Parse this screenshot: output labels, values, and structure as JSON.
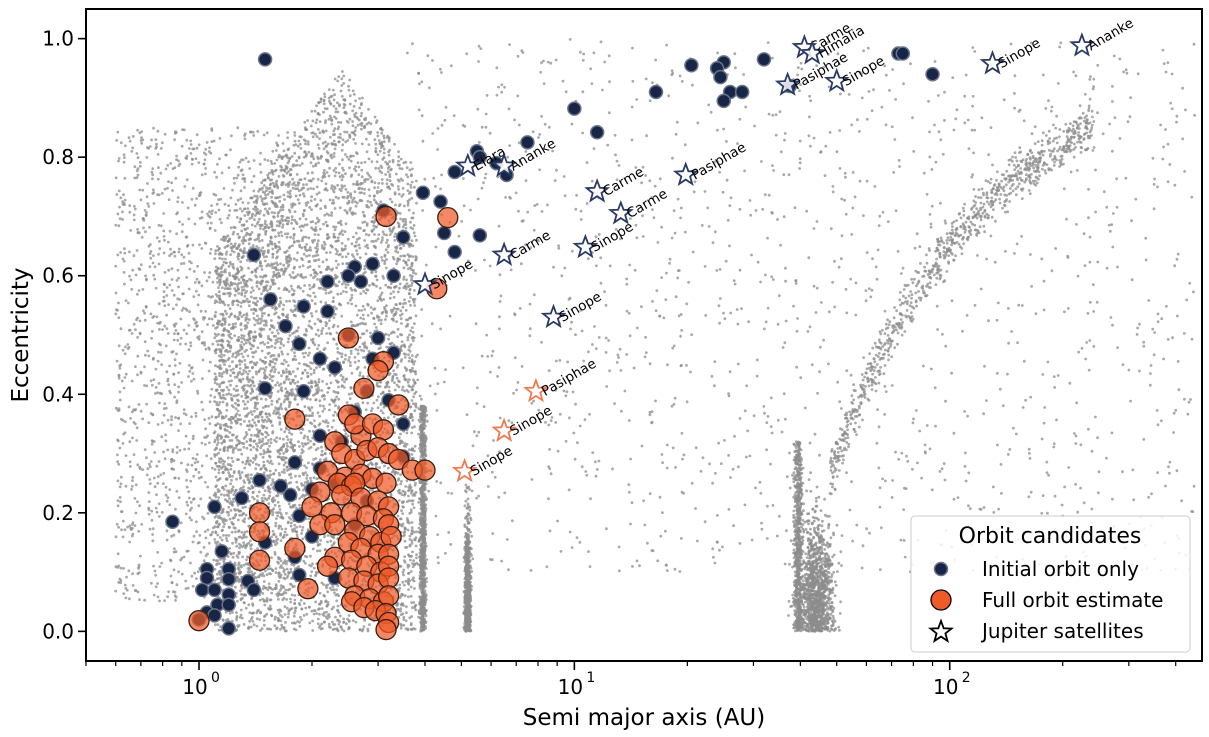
{
  "chart_data": {
    "type": "scatter",
    "xlabel": "Semi major axis (AU)",
    "ylabel": "Eccentricity",
    "xscale": "log",
    "xlim": [
      0.5,
      470
    ],
    "ylim": [
      -0.05,
      1.05
    ],
    "x_ticks": [
      {
        "value": 1,
        "base": "10",
        "exp": "0"
      },
      {
        "value": 10,
        "base": "10",
        "exp": "1"
      },
      {
        "value": 100,
        "base": "10",
        "exp": "2"
      }
    ],
    "y_ticks": [
      {
        "value": 0.0,
        "label": "0.0"
      },
      {
        "value": 0.2,
        "label": "0.2"
      },
      {
        "value": 0.4,
        "label": "0.4"
      },
      {
        "value": 0.6,
        "label": "0.6"
      },
      {
        "value": 0.8,
        "label": "0.8"
      },
      {
        "value": 1.0,
        "label": "1.0"
      }
    ],
    "grid": false,
    "legend": {
      "title": "Orbit candidates",
      "position": "bottom-right",
      "entries": [
        "Initial orbit only",
        "Full orbit estimate",
        "Jupiter satellites"
      ]
    },
    "colors": {
      "background_points": "#8c8c8c",
      "initial_orbit": "#172547",
      "full_orbit": "#f05a28",
      "satellite_initial": "#2a3a66",
      "satellite_full": "#f07a50"
    },
    "series": [
      {
        "name": "Initial orbit only",
        "points": [
          [
            1.5,
            0.965
          ],
          [
            20.5,
            0.955
          ],
          [
            25,
            0.96
          ],
          [
            24,
            0.95
          ],
          [
            32,
            0.965
          ],
          [
            73,
            0.975
          ],
          [
            75,
            0.975
          ],
          [
            90,
            0.94
          ],
          [
            24.5,
            0.935
          ],
          [
            37.5,
            0.92
          ],
          [
            26,
            0.91
          ],
          [
            28,
            0.91
          ],
          [
            16.5,
            0.91
          ],
          [
            25,
            0.895
          ],
          [
            10,
            0.882
          ],
          [
            11.5,
            0.842
          ],
          [
            7.5,
            0.825
          ],
          [
            5.5,
            0.81
          ],
          [
            5.6,
            0.8
          ],
          [
            6.2,
            0.79
          ],
          [
            4.8,
            0.775
          ],
          [
            6.6,
            0.77
          ],
          [
            3.95,
            0.74
          ],
          [
            4.4,
            0.725
          ],
          [
            3.1,
            0.71
          ],
          [
            3.5,
            0.665
          ],
          [
            4.5,
            0.672
          ],
          [
            5.6,
            0.668
          ],
          [
            4.8,
            0.64
          ],
          [
            1.4,
            0.635
          ],
          [
            2.6,
            0.615
          ],
          [
            2.5,
            0.6
          ],
          [
            2.9,
            0.62
          ],
          [
            3.3,
            0.6
          ],
          [
            2.2,
            0.59
          ],
          [
            2.7,
            0.59
          ],
          [
            1.55,
            0.56
          ],
          [
            1.9,
            0.548
          ],
          [
            2.2,
            0.54
          ],
          [
            1.7,
            0.515
          ],
          [
            2.5,
            0.5
          ],
          [
            1.85,
            0.485
          ],
          [
            3.0,
            0.495
          ],
          [
            2.1,
            0.46
          ],
          [
            2.9,
            0.46
          ],
          [
            3.3,
            0.47
          ],
          [
            2.3,
            0.445
          ],
          [
            1.5,
            0.41
          ],
          [
            1.9,
            0.405
          ],
          [
            2.8,
            0.405
          ],
          [
            2.6,
            0.37
          ],
          [
            3.2,
            0.39
          ],
          [
            3.5,
            0.35
          ],
          [
            2.1,
            0.33
          ],
          [
            2.4,
            0.32
          ],
          [
            1.8,
            0.285
          ],
          [
            2.1,
            0.275
          ],
          [
            3.5,
            0.295
          ],
          [
            1.45,
            0.255
          ],
          [
            1.3,
            0.225
          ],
          [
            1.65,
            0.245
          ],
          [
            1.75,
            0.23
          ],
          [
            2.0,
            0.24
          ],
          [
            2.3,
            0.25
          ],
          [
            2.8,
            0.22
          ],
          [
            1.1,
            0.21
          ],
          [
            0.85,
            0.185
          ],
          [
            1.85,
            0.195
          ],
          [
            2.6,
            0.18
          ],
          [
            1.5,
            0.15
          ],
          [
            2.0,
            0.16
          ],
          [
            1.15,
            0.135
          ],
          [
            1.8,
            0.125
          ],
          [
            2.3,
            0.09
          ],
          [
            1.85,
            0.095
          ],
          [
            1.05,
            0.105
          ],
          [
            1.2,
            0.105
          ],
          [
            1.05,
            0.09
          ],
          [
            1.2,
            0.088
          ],
          [
            1.35,
            0.085
          ],
          [
            1.02,
            0.07
          ],
          [
            1.1,
            0.07
          ],
          [
            1.2,
            0.062
          ],
          [
            1.4,
            0.07
          ],
          [
            1.12,
            0.045
          ],
          [
            1.2,
            0.045
          ],
          [
            1.05,
            0.032
          ],
          [
            1.1,
            0.027
          ],
          [
            1.0,
            0.02
          ],
          [
            1.2,
            0.005
          ]
        ]
      },
      {
        "name": "Full orbit estimate",
        "points": [
          [
            3.15,
            0.7
          ],
          [
            4.6,
            0.698
          ],
          [
            4.3,
            0.578
          ],
          [
            2.5,
            0.495
          ],
          [
            3.1,
            0.455
          ],
          [
            2.75,
            0.41
          ],
          [
            3.0,
            0.44
          ],
          [
            3.4,
            0.382
          ],
          [
            1.8,
            0.358
          ],
          [
            2.5,
            0.365
          ],
          [
            2.7,
            0.33
          ],
          [
            2.3,
            0.32
          ],
          [
            2.6,
            0.35
          ],
          [
            2.9,
            0.35
          ],
          [
            3.1,
            0.34
          ],
          [
            2.4,
            0.3
          ],
          [
            2.6,
            0.29
          ],
          [
            2.8,
            0.305
          ],
          [
            3.0,
            0.31
          ],
          [
            3.2,
            0.3
          ],
          [
            3.4,
            0.29
          ],
          [
            3.7,
            0.272
          ],
          [
            4.0,
            0.272
          ],
          [
            2.2,
            0.27
          ],
          [
            2.45,
            0.26
          ],
          [
            2.7,
            0.265
          ],
          [
            2.9,
            0.258
          ],
          [
            3.15,
            0.25
          ],
          [
            2.35,
            0.25
          ],
          [
            2.55,
            0.245
          ],
          [
            2.6,
            0.25
          ],
          [
            2.1,
            0.235
          ],
          [
            2.4,
            0.23
          ],
          [
            2.7,
            0.225
          ],
          [
            3.0,
            0.22
          ],
          [
            3.2,
            0.21
          ],
          [
            2.0,
            0.21
          ],
          [
            2.25,
            0.2
          ],
          [
            2.55,
            0.2
          ],
          [
            2.8,
            0.195
          ],
          [
            3.1,
            0.19
          ],
          [
            3.2,
            0.18
          ],
          [
            1.45,
            0.2
          ],
          [
            2.1,
            0.18
          ],
          [
            2.3,
            0.18
          ],
          [
            2.6,
            0.17
          ],
          [
            2.85,
            0.16
          ],
          [
            3.05,
            0.15
          ],
          [
            3.25,
            0.16
          ],
          [
            1.45,
            0.168
          ],
          [
            2.5,
            0.15
          ],
          [
            2.7,
            0.14
          ],
          [
            3.0,
            0.13
          ],
          [
            3.2,
            0.13
          ],
          [
            1.8,
            0.14
          ],
          [
            2.3,
            0.125
          ],
          [
            2.55,
            0.12
          ],
          [
            2.8,
            0.11
          ],
          [
            3.05,
            0.1
          ],
          [
            3.2,
            0.11
          ],
          [
            1.45,
            0.12
          ],
          [
            2.2,
            0.11
          ],
          [
            2.5,
            0.09
          ],
          [
            2.75,
            0.085
          ],
          [
            3.0,
            0.08
          ],
          [
            3.2,
            0.09
          ],
          [
            1.95,
            0.072
          ],
          [
            2.6,
            0.06
          ],
          [
            2.85,
            0.055
          ],
          [
            3.1,
            0.05
          ],
          [
            3.2,
            0.06
          ],
          [
            2.55,
            0.05
          ],
          [
            2.75,
            0.04
          ],
          [
            2.95,
            0.035
          ],
          [
            3.15,
            0.03
          ],
          [
            3.2,
            0.015
          ],
          [
            3.15,
            0.003
          ],
          [
            1.0,
            0.018
          ]
        ]
      },
      {
        "name": "Jupiter satellites",
        "points": [
          {
            "x": 41,
            "y": 0.985,
            "label": "Carme",
            "variant": "initial"
          },
          {
            "x": 43,
            "y": 0.975,
            "label": "Himalia",
            "variant": "initial"
          },
          {
            "x": 37,
            "y": 0.922,
            "label": "Pasiphae",
            "variant": "initial"
          },
          {
            "x": 50,
            "y": 0.928,
            "label": "Sinope",
            "variant": "initial"
          },
          {
            "x": 130,
            "y": 0.958,
            "label": "Sinope",
            "variant": "initial"
          },
          {
            "x": 225,
            "y": 0.988,
            "label": "Ananke",
            "variant": "initial"
          },
          {
            "x": 5.2,
            "y": 0.785,
            "label": "Elara",
            "variant": "initial"
          },
          {
            "x": 6.5,
            "y": 0.785,
            "label": "Ananke",
            "variant": "initial"
          },
          {
            "x": 11.5,
            "y": 0.742,
            "label": "Carme",
            "variant": "initial"
          },
          {
            "x": 19.8,
            "y": 0.77,
            "label": "Pasiphae",
            "variant": "initial"
          },
          {
            "x": 13.3,
            "y": 0.705,
            "label": "Carme",
            "variant": "initial"
          },
          {
            "x": 6.5,
            "y": 0.635,
            "label": "Carme",
            "variant": "initial"
          },
          {
            "x": 10.7,
            "y": 0.648,
            "label": "Sinope",
            "variant": "initial"
          },
          {
            "x": 4.0,
            "y": 0.585,
            "label": "Sinope",
            "variant": "initial"
          },
          {
            "x": 8.8,
            "y": 0.53,
            "label": "Sinope",
            "variant": "initial"
          },
          {
            "x": 7.9,
            "y": 0.405,
            "label": "Pasiphae",
            "variant": "full"
          },
          {
            "x": 6.5,
            "y": 0.338,
            "label": "Sinope",
            "variant": "full"
          },
          {
            "x": 5.1,
            "y": 0.27,
            "label": "Sinope",
            "variant": "full"
          }
        ]
      }
    ]
  }
}
